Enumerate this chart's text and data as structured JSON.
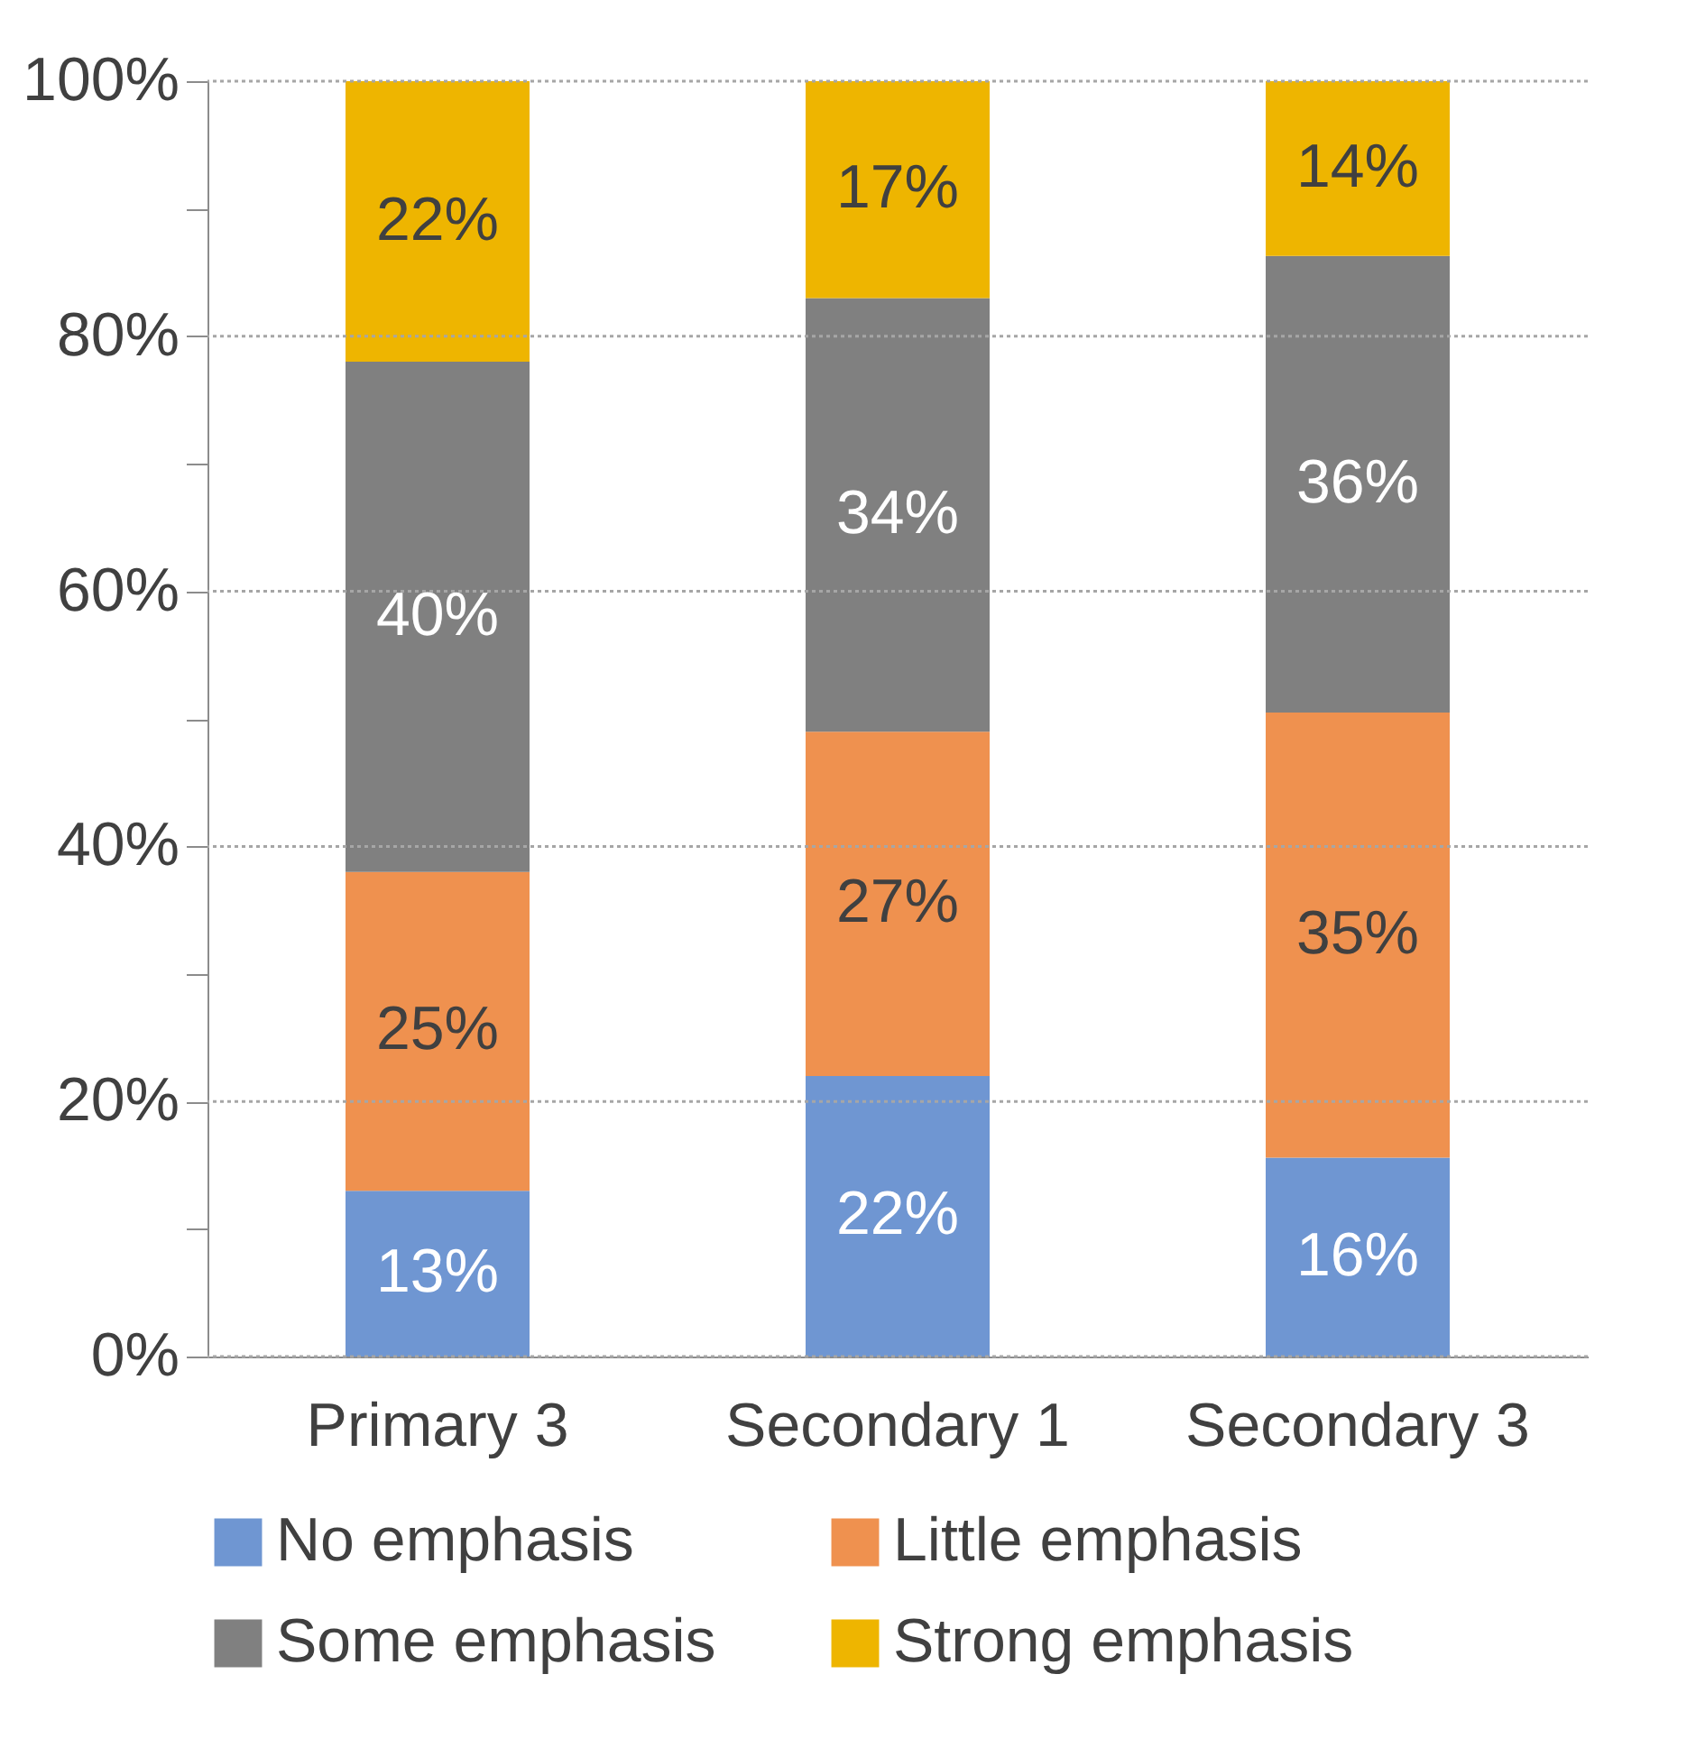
{
  "chart_data": {
    "type": "bar",
    "stacked": true,
    "categories": [
      "Primary 3",
      "Secondary 1",
      "Secondary 3"
    ],
    "series": [
      {
        "name": "No emphasis",
        "color": "#6f96d2",
        "values": [
          13,
          22,
          15.6
        ],
        "value_labels": [
          "13%",
          "22%",
          "16%"
        ]
      },
      {
        "name": "Little emphasis",
        "color": "#ef914f",
        "values": [
          25,
          27,
          34.9
        ],
        "value_labels": [
          "25%",
          "27%",
          "35%"
        ]
      },
      {
        "name": "Some emphasis",
        "color": "#808080",
        "values": [
          40,
          34,
          35.8
        ],
        "value_labels": [
          "40%",
          "34%",
          "36%"
        ]
      },
      {
        "name": "Strong emphasis",
        "color": "#eeb500",
        "values": [
          22,
          17,
          13.7
        ],
        "value_labels": [
          "22%",
          "17%",
          "14%"
        ]
      }
    ],
    "ylim": [
      0,
      100
    ],
    "yticks": [
      {
        "value": 0,
        "label": "0%"
      },
      {
        "value": 10,
        "label": null
      },
      {
        "value": 20,
        "label": "20%"
      },
      {
        "value": 30,
        "label": null
      },
      {
        "value": 40,
        "label": "40%"
      },
      {
        "value": 50,
        "label": null
      },
      {
        "value": 60,
        "label": "60%"
      },
      {
        "value": 70,
        "label": null
      },
      {
        "value": 80,
        "label": "80%"
      },
      {
        "value": 90,
        "label": null
      },
      {
        "value": 100,
        "label": "100%"
      }
    ],
    "grid": "y",
    "legend": "bottom"
  }
}
